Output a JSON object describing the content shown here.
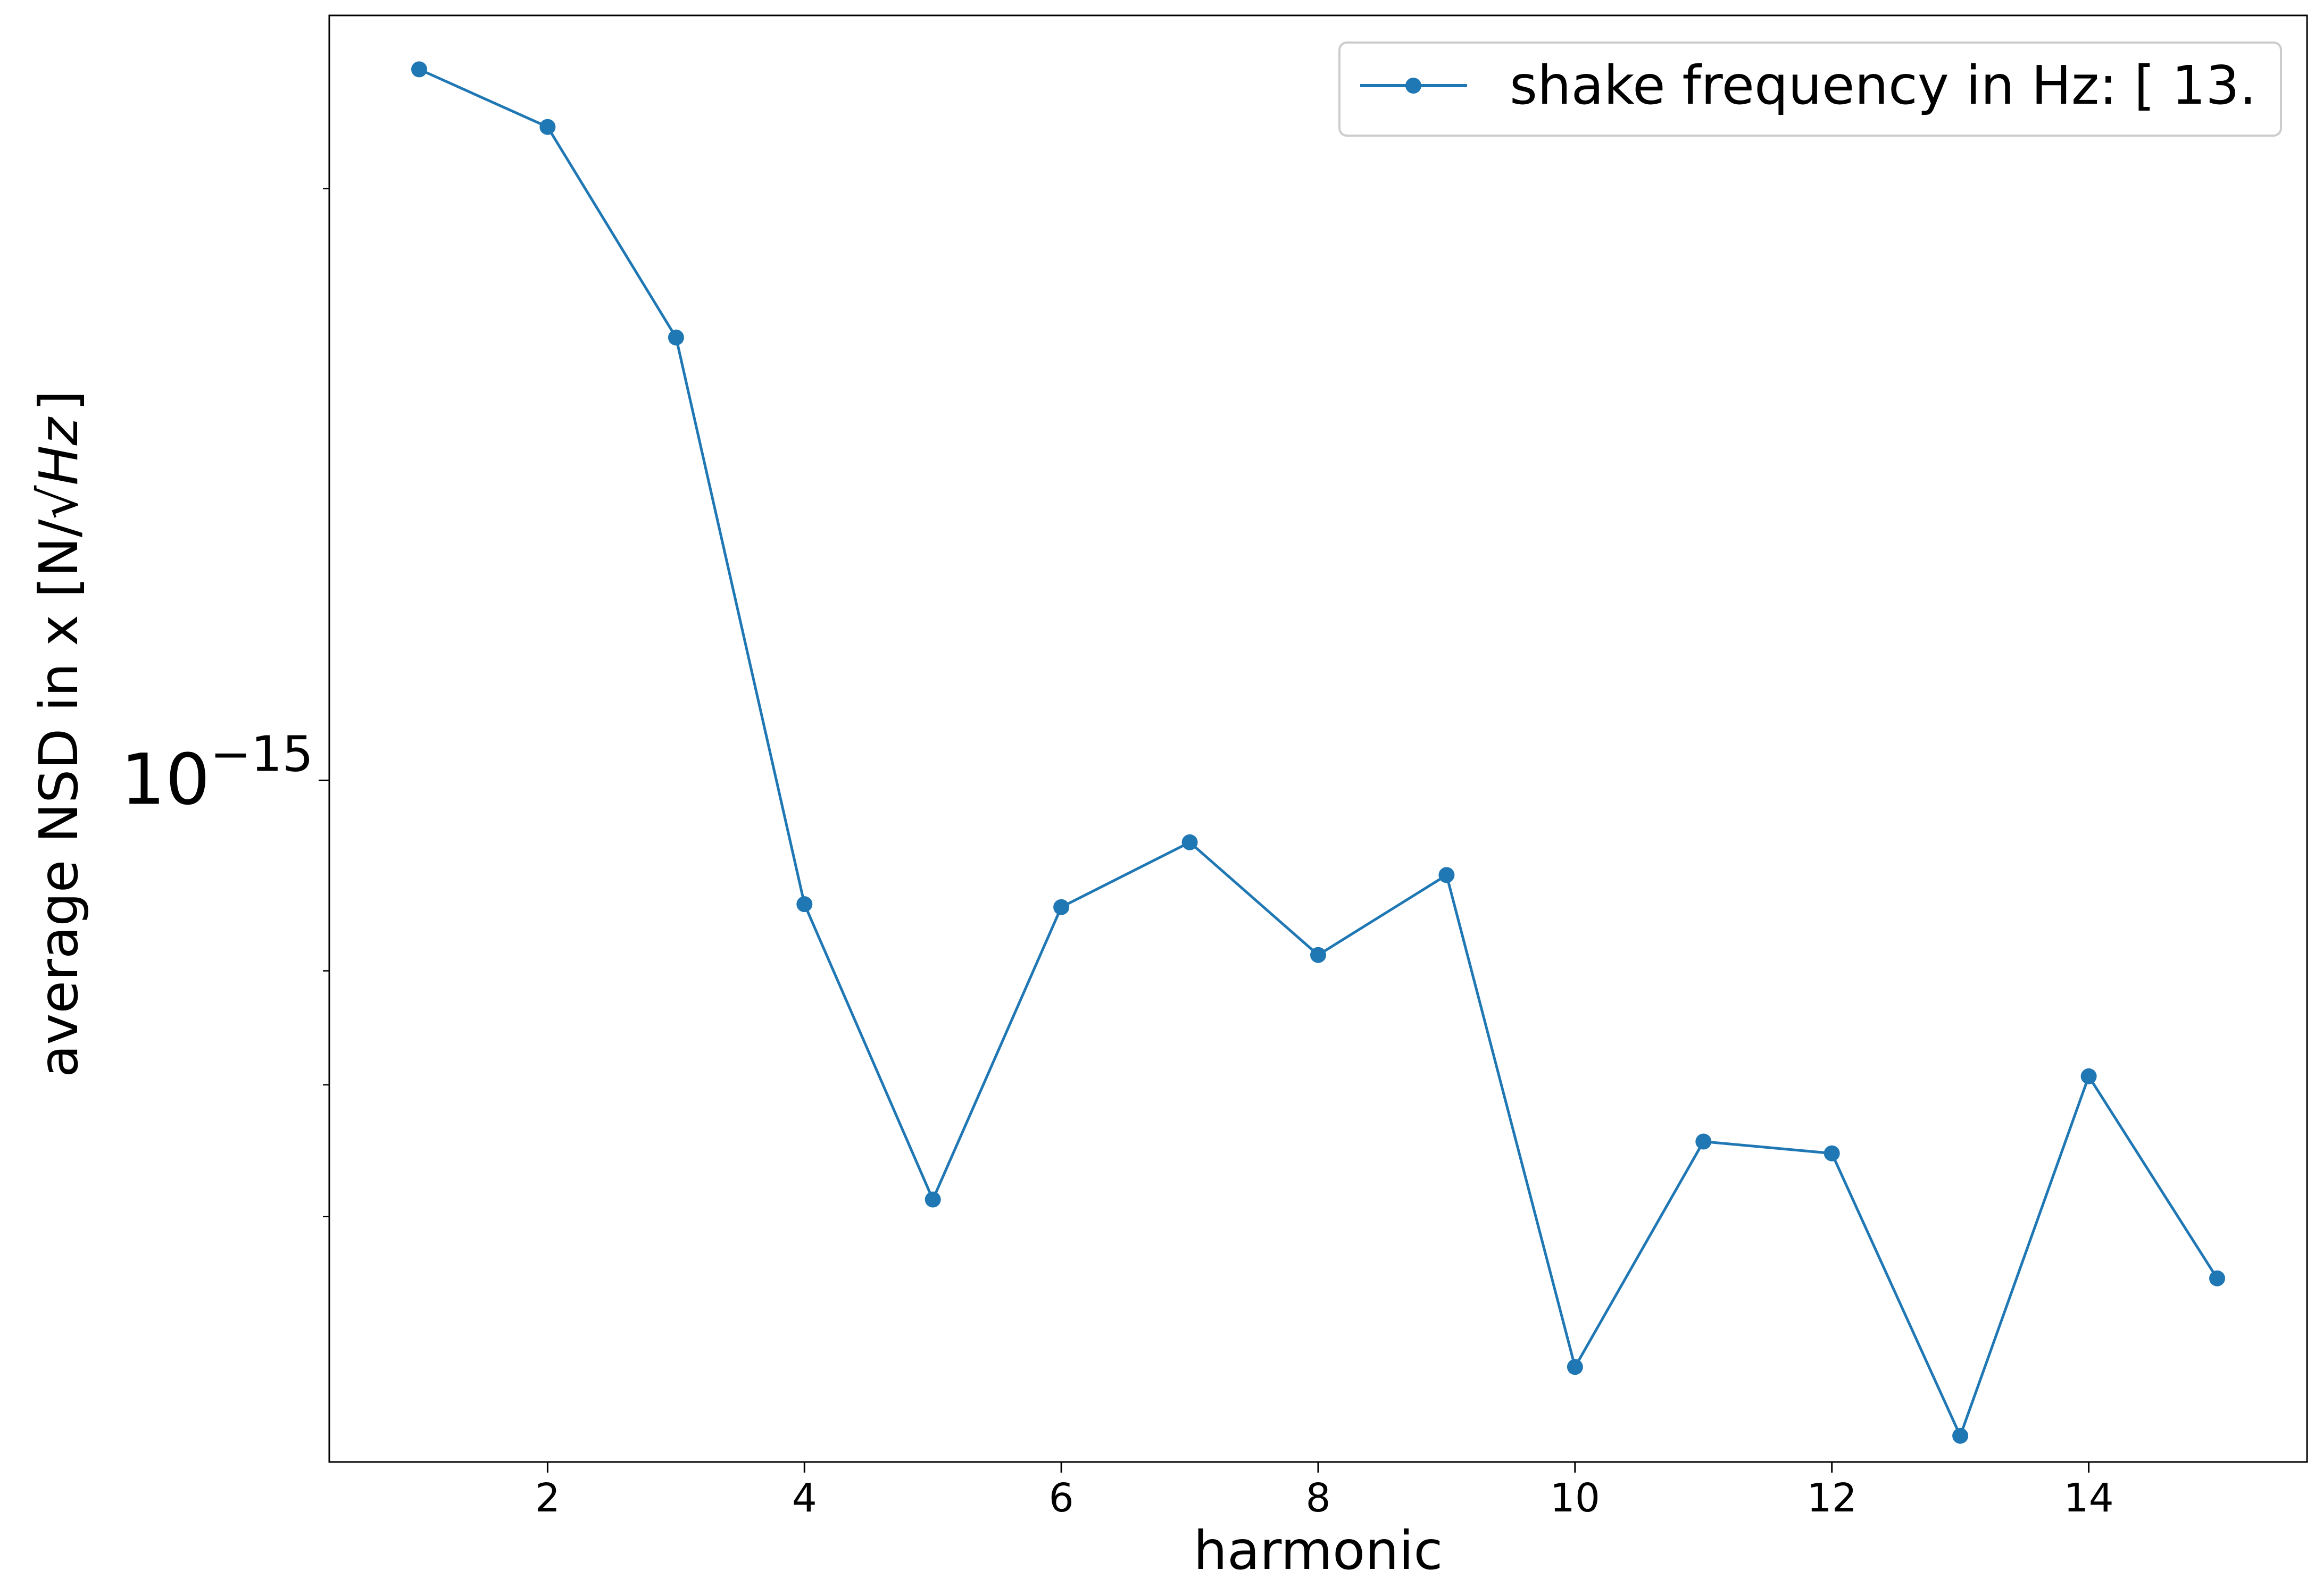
{
  "chart_data": {
    "type": "line",
    "title": "",
    "xlabel": "harmonic",
    "ylabel_main": "average NSD in x [N/",
    "ylabel_radicand": "Hz",
    "ylabel_close": "]",
    "yscale": "log",
    "xlim": [
      0.3,
      15.7
    ],
    "ylim": [
      4.5e-16,
      2.45e-15
    ],
    "x_ticks": [
      2,
      4,
      6,
      8,
      10,
      12,
      14
    ],
    "x_tick_labels": [
      "2",
      "4",
      "6",
      "8",
      "10",
      "12",
      "14"
    ],
    "y_major_tick": {
      "value": 1e-15,
      "base": "10",
      "exponent": "−15"
    },
    "y_minor_ticks": [
      6e-16,
      7e-16,
      8e-16,
      2e-15
    ],
    "grid": false,
    "legend_position": "top-right",
    "color": "#1f77b4",
    "series": [
      {
        "name": "shake frequency in Hz: [ 13.",
        "x": [
          1,
          2,
          3,
          4,
          5,
          6,
          7,
          8,
          9,
          10,
          11,
          12,
          13,
          14,
          15
        ],
        "y": [
          2.3e-15,
          2.15e-15,
          1.68e-15,
          8.65e-16,
          6.12e-16,
          8.62e-16,
          9.3e-16,
          8.15e-16,
          8.95e-16,
          5.03e-16,
          6.55e-16,
          6.46e-16,
          4.64e-16,
          7.07e-16,
          5.58e-16
        ]
      }
    ]
  }
}
